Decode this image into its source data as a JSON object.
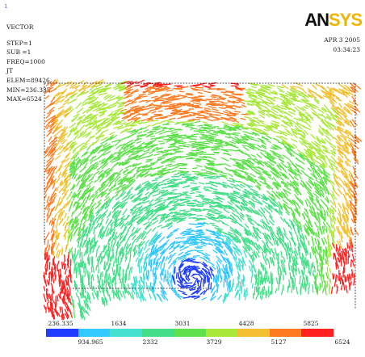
{
  "window": {
    "number": "1"
  },
  "header": {
    "lines": [
      "VECTOR",
      "STEP=1",
      "SUB =1",
      "FREQ=1000",
      "JT",
      "ELEM=89426",
      "MIN=236.335",
      "MAX=6524"
    ],
    "date": "APR  3 2005",
    "time": "03:34:23"
  },
  "logo": {
    "part1": "AN",
    "part2": "SYS"
  },
  "legend": {
    "colors": [
      "#1f3cff",
      "#33c8ff",
      "#44e0d0",
      "#44dd88",
      "#5de04a",
      "#a8e83a",
      "#f2c030",
      "#ff7a20",
      "#ff2020"
    ],
    "top_labels": [
      "236.335",
      "1634",
      "3031",
      "4428",
      "5825"
    ],
    "bottom_labels": [
      "934.965",
      "2332",
      "3729",
      "5127",
      "6524"
    ]
  },
  "plot": {
    "type": "vector-field",
    "min": 236.335,
    "max": 6524
  }
}
